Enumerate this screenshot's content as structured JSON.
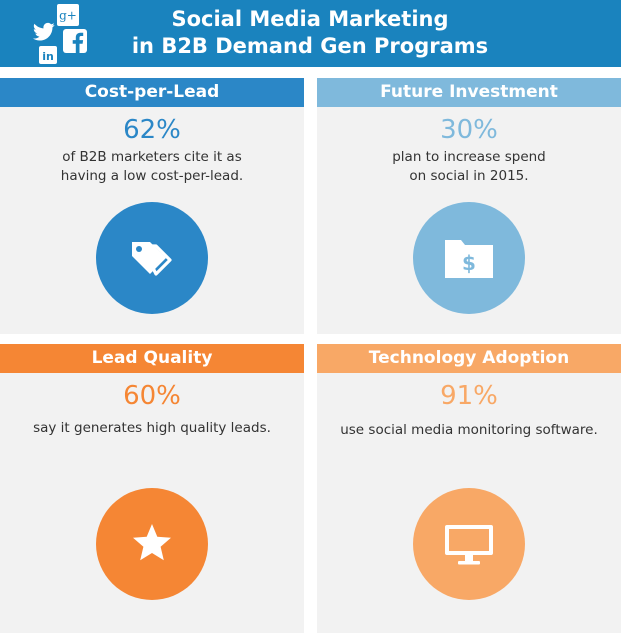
{
  "header": {
    "title_line1": "Social Media Marketing",
    "title_line2": "in B2B Demand Gen Programs",
    "background": "#1a83be",
    "social_icons": [
      "google-plus-icon",
      "twitter-icon",
      "facebook-icon",
      "linkedin-icon"
    ],
    "google_plus_text": "g+",
    "linkedin_text": "in"
  },
  "panels": [
    {
      "title": "Cost-per-Lead",
      "percent": "62%",
      "desc_line1": "of B2B marketers cite it as",
      "desc_line2": "having a low cost-per-lead.",
      "color": "#2b87c7",
      "icon": "price-tags-icon"
    },
    {
      "title": "Future Investment",
      "percent": "30%",
      "desc_line1": "plan to increase spend",
      "desc_line2": "on social in 2015.",
      "color": "#7fb9dc",
      "icon": "dollar-folder-icon"
    },
    {
      "title": "Lead Quality",
      "percent": "60%",
      "desc_line1": "say it generates high quality leads.",
      "desc_line2": "",
      "color": "#f58634",
      "icon": "star-icon"
    },
    {
      "title": "Technology Adoption",
      "percent": "91%",
      "desc_line1": "use social media monitoring software.",
      "desc_line2": "",
      "color": "#f8a866",
      "icon": "monitor-icon"
    }
  ]
}
